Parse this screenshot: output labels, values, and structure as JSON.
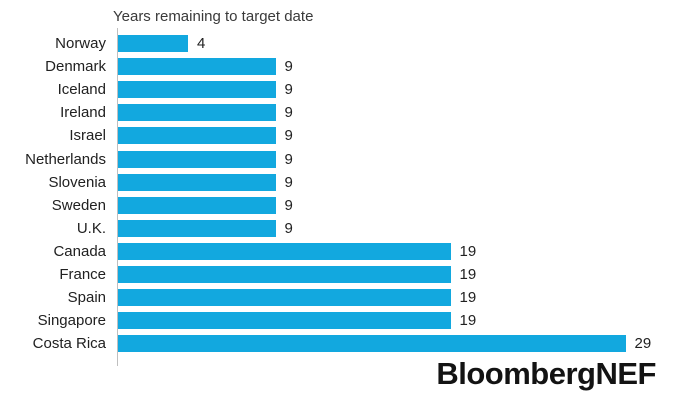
{
  "chart_data": {
    "type": "bar",
    "orientation": "horizontal",
    "title": "Years remaining to target date",
    "categories": [
      "Norway",
      "Denmark",
      "Iceland",
      "Ireland",
      "Israel",
      "Netherlands",
      "Slovenia",
      "Sweden",
      "U.K.",
      "Canada",
      "France",
      "Spain",
      "Singapore",
      "Costa Rica"
    ],
    "values": [
      4,
      9,
      9,
      9,
      9,
      9,
      9,
      9,
      9,
      19,
      19,
      19,
      19,
      29
    ],
    "xlabel": "",
    "ylabel": "",
    "xlim": [
      0,
      30
    ],
    "grid": false,
    "legend": null,
    "value_labels_shown": true,
    "bar_color": "#12a8df",
    "axis_color": "#bfbfbf",
    "text_color": "#212121"
  },
  "branding": {
    "logo_text": "BloombergNEF"
  }
}
